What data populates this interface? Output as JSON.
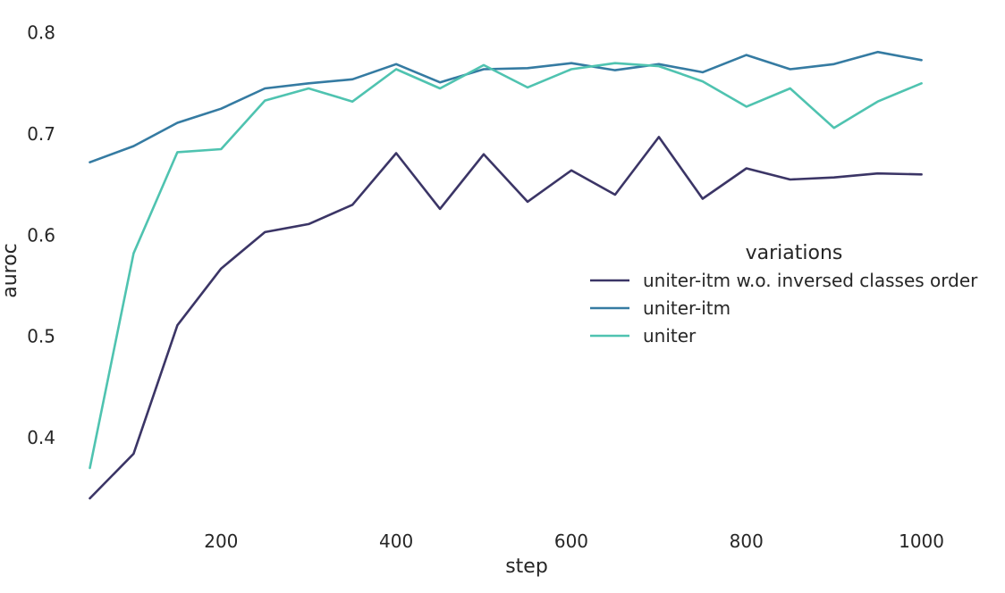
{
  "chart_data": {
    "type": "line",
    "title": "",
    "xlabel": "step",
    "ylabel": "auroc",
    "xlim": [
      25,
      1075
    ],
    "ylim": [
      0.31,
      0.82
    ],
    "xticks": [
      200,
      400,
      600,
      800,
      1000
    ],
    "xtick_labels": [
      "200",
      "400",
      "600",
      "800",
      "1000"
    ],
    "yticks": [
      0.4,
      0.5,
      0.6,
      0.7,
      0.8
    ],
    "ytick_labels": [
      "0.4",
      "0.5",
      "0.6",
      "0.7",
      "0.8"
    ],
    "grid": false,
    "legend": {
      "title": "variations",
      "placement": "center-right"
    },
    "x": [
      50,
      100,
      150,
      200,
      250,
      300,
      350,
      400,
      450,
      500,
      550,
      600,
      650,
      700,
      750,
      800,
      850,
      900,
      950,
      1000
    ],
    "series": [
      {
        "name": "uniter-itm w.o. inversed classes order",
        "color": "#3b3566",
        "values": [
          0.34,
          0.384,
          0.511,
          0.567,
          0.603,
          0.611,
          0.63,
          0.681,
          0.626,
          0.68,
          0.633,
          0.664,
          0.64,
          0.697,
          0.636,
          0.666,
          0.655,
          0.657,
          0.661,
          0.66
        ]
      },
      {
        "name": "uniter-itm",
        "color": "#357ba2",
        "values": [
          0.672,
          0.688,
          0.711,
          0.725,
          0.745,
          0.75,
          0.754,
          0.769,
          0.751,
          0.764,
          0.765,
          0.77,
          0.763,
          0.769,
          0.761,
          0.778,
          0.764,
          0.769,
          0.781,
          0.773
        ]
      },
      {
        "name": "uniter",
        "color": "#4fc3b0",
        "values": [
          0.37,
          0.582,
          0.682,
          0.685,
          0.733,
          0.745,
          0.732,
          0.764,
          0.745,
          0.768,
          0.746,
          0.764,
          0.77,
          0.767,
          0.752,
          0.727,
          0.745,
          0.706,
          0.732,
          0.75
        ]
      }
    ]
  }
}
